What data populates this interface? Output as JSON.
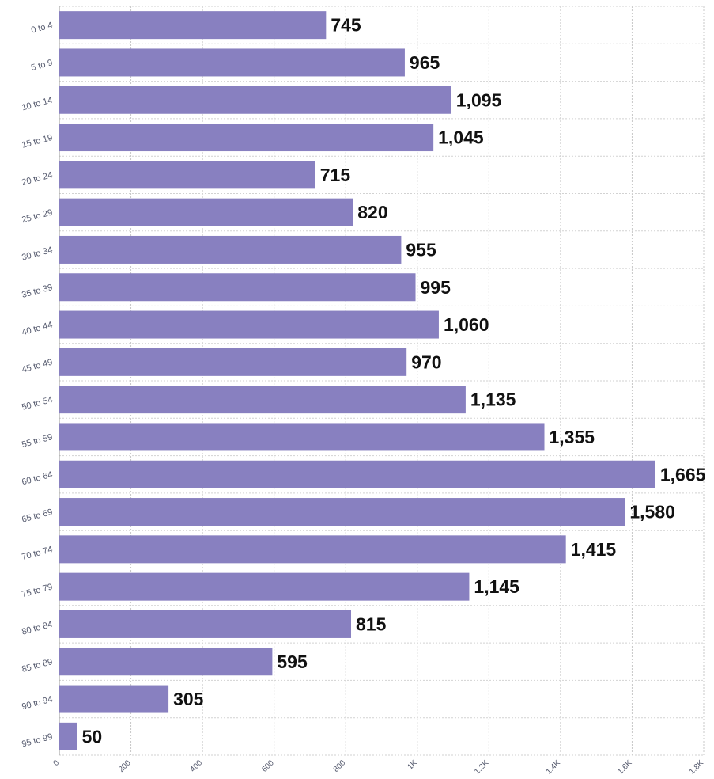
{
  "chart_data": {
    "type": "bar",
    "orientation": "horizontal",
    "categories": [
      "0 to 4",
      "5 to 9",
      "10 to 14",
      "15 to 19",
      "20 to 24",
      "25 to 29",
      "30 to 34",
      "35 to 39",
      "40 to 44",
      "45 to 49",
      "50 to 54",
      "55 to 59",
      "60 to 64",
      "65 to 69",
      "70 to 74",
      "75 to 79",
      "80 to 84",
      "85 to 89",
      "90 to 94",
      "95 to 99"
    ],
    "values": [
      745,
      965,
      1095,
      1045,
      715,
      820,
      955,
      995,
      1060,
      970,
      1135,
      1355,
      1665,
      1580,
      1415,
      1145,
      815,
      595,
      305,
      50
    ],
    "value_labels": [
      "745",
      "965",
      "1,095",
      "1,045",
      "715",
      "820",
      "955",
      "995",
      "1,060",
      "970",
      "1,135",
      "1,355",
      "1,665",
      "1,580",
      "1,415",
      "1,145",
      "815",
      "595",
      "305",
      "50"
    ],
    "x_ticks": [
      0,
      200,
      400,
      600,
      800,
      1000,
      1200,
      1400,
      1600,
      1800
    ],
    "x_tick_labels": [
      "0",
      "200",
      "400",
      "600",
      "800",
      "1K",
      "1.2K",
      "1.4K",
      "1.6K",
      "1.8K"
    ],
    "xlim": [
      0,
      1800
    ],
    "grid": true,
    "bar_color": "#8880c0",
    "title": "",
    "xlabel": "",
    "ylabel": ""
  }
}
